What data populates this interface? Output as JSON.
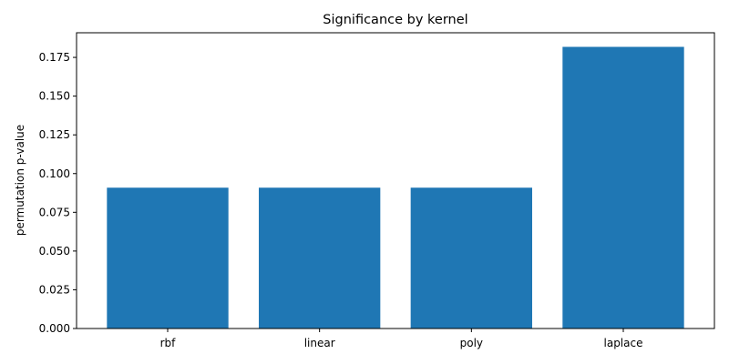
{
  "chart_data": {
    "type": "bar",
    "title": "Significance by kernel",
    "xlabel": "",
    "ylabel": "permutation p-value",
    "categories": [
      "rbf",
      "linear",
      "poly",
      "laplace"
    ],
    "values": [
      0.0909,
      0.0909,
      0.0909,
      0.1818
    ],
    "ylim": [
      0,
      0.1909
    ],
    "yticks": [
      0.0,
      0.025,
      0.05,
      0.075,
      0.1,
      0.125,
      0.15,
      0.175
    ],
    "ytick_labels": [
      "0.000",
      "0.025",
      "0.050",
      "0.075",
      "0.100",
      "0.125",
      "0.150",
      "0.175"
    ],
    "grid": false,
    "legend": "none",
    "bar_color": "#1f77b4"
  }
}
